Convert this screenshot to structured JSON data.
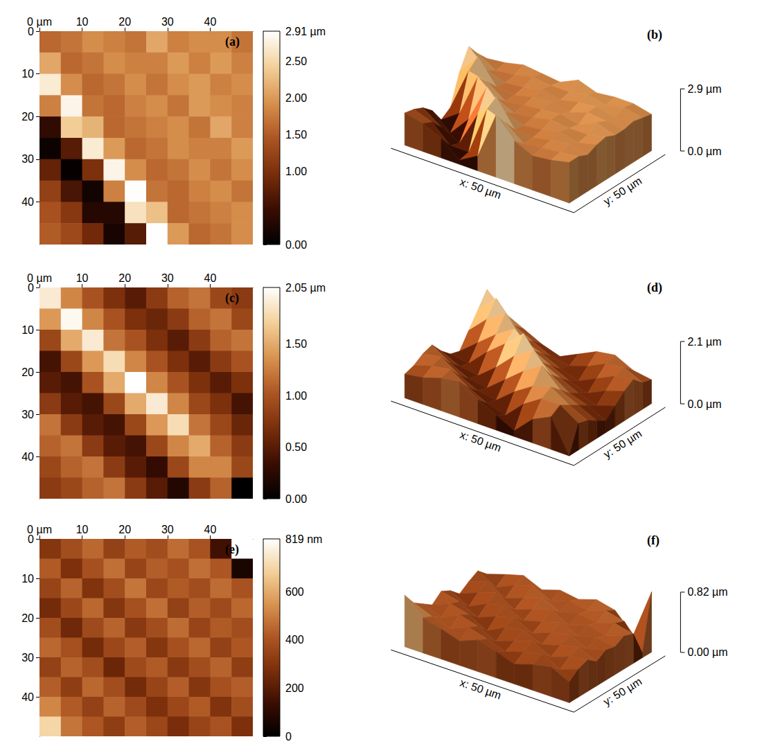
{
  "chart_data": [
    {
      "type": "heatmap",
      "panel_labels": [
        "(a)",
        "(b)"
      ],
      "xlim": [
        0,
        50
      ],
      "ylim": [
        0,
        50
      ],
      "xticks": [
        {
          "value": 0,
          "label": "0 µm"
        },
        10,
        20,
        30,
        40
      ],
      "yticks": [
        0,
        10,
        20,
        30,
        40
      ],
      "colors": [
        "#000000",
        "#3a0d02",
        "#7a2e0a",
        "#ad5523",
        "#d8924f",
        "#f3d09a",
        "#ffffff"
      ],
      "z": [
        [
          1.6,
          1.7,
          1.9,
          1.8,
          1.7,
          2.1,
          1.8,
          1.9,
          1.9,
          1.7
        ],
        [
          2.1,
          1.6,
          1.7,
          1.9,
          1.8,
          1.8,
          2.0,
          1.8,
          2.0,
          1.8
        ],
        [
          2.7,
          1.9,
          1.6,
          1.7,
          1.9,
          1.7,
          1.9,
          2.0,
          1.8,
          1.9
        ],
        [
          1.8,
          2.8,
          1.7,
          1.6,
          1.8,
          1.9,
          1.7,
          2.0,
          1.9,
          1.8
        ],
        [
          0.4,
          2.4,
          2.2,
          1.6,
          1.7,
          1.8,
          1.9,
          1.7,
          2.1,
          1.8
        ],
        [
          0.1,
          0.7,
          2.7,
          2.0,
          1.6,
          1.7,
          1.9,
          1.8,
          1.8,
          2.0
        ],
        [
          0.8,
          0.05,
          1.0,
          2.8,
          1.9,
          1.6,
          1.7,
          1.9,
          1.7,
          1.9
        ],
        [
          1.2,
          0.6,
          0.15,
          1.8,
          2.9,
          1.7,
          1.6,
          1.8,
          1.9,
          1.7
        ],
        [
          1.4,
          1.1,
          0.3,
          0.3,
          2.6,
          2.3,
          1.6,
          1.7,
          1.8,
          1.9
        ],
        [
          1.5,
          1.3,
          0.9,
          0.2,
          0.7,
          2.91,
          2.0,
          1.6,
          1.7,
          1.9
        ]
      ],
      "colorbar": {
        "range": [
          0,
          2.91
        ],
        "ticks": [
          {
            "value": 0,
            "label": "0.00"
          },
          {
            "value": 1,
            "label": "1.00"
          },
          {
            "value": 1.5,
            "label": "1.50"
          },
          {
            "value": 2,
            "label": "2.00"
          },
          {
            "value": 2.5,
            "label": "2.50"
          },
          {
            "value": 2.91,
            "label": "2.91 µm"
          }
        ]
      },
      "surface": {
        "xlabel": "x: 50 µm",
        "ylabel": "y: 50 µm",
        "zlim": [
          0,
          2.91
        ],
        "zticks": [
          {
            "value": 0,
            "label": "0.0 µm"
          },
          {
            "value": 2.9,
            "label": "2.9 µm"
          }
        ]
      }
    },
    {
      "type": "heatmap",
      "panel_labels": [
        "(c)",
        "(d)"
      ],
      "xlim": [
        0,
        50
      ],
      "ylim": [
        0,
        50
      ],
      "xticks": [
        {
          "value": 0,
          "label": "0 µm"
        },
        10,
        20,
        30,
        40
      ],
      "yticks": [
        0,
        10,
        20,
        30,
        40
      ],
      "colors": [
        "#000000",
        "#3a0d02",
        "#7a2e0a",
        "#ad5523",
        "#d8924f",
        "#f3d09a",
        "#ffffff"
      ],
      "z": [
        [
          1.9,
          1.3,
          1.0,
          0.7,
          0.5,
          0.8,
          1.1,
          1.2,
          0.9,
          0.8
        ],
        [
          1.4,
          2.0,
          1.3,
          1.0,
          0.7,
          0.6,
          0.8,
          1.1,
          1.2,
          0.9
        ],
        [
          0.9,
          1.5,
          1.9,
          1.2,
          1.0,
          0.7,
          0.5,
          0.8,
          1.1,
          1.2
        ],
        [
          0.4,
          0.9,
          1.4,
          1.8,
          1.3,
          1.0,
          0.7,
          0.5,
          0.8,
          1.0
        ],
        [
          0.5,
          0.4,
          1.0,
          1.5,
          2.05,
          1.3,
          1.0,
          0.7,
          0.5,
          0.7
        ],
        [
          0.8,
          0.5,
          0.4,
          0.9,
          1.5,
          1.9,
          1.3,
          0.9,
          0.7,
          0.4
        ],
        [
          1.2,
          0.8,
          0.5,
          0.4,
          0.9,
          1.4,
          1.8,
          1.2,
          0.9,
          0.6
        ],
        [
          1.1,
          1.2,
          0.8,
          0.5,
          0.4,
          0.9,
          1.3,
          1.5,
          1.1,
          0.8
        ],
        [
          0.9,
          1.1,
          1.2,
          0.8,
          0.5,
          0.3,
          0.9,
          1.3,
          1.3,
          0.9
        ],
        [
          0.8,
          0.9,
          1.1,
          1.2,
          0.8,
          0.5,
          0.2,
          0.8,
          1.1,
          0.0
        ]
      ],
      "colorbar": {
        "range": [
          0,
          2.05
        ],
        "ticks": [
          {
            "value": 0,
            "label": "0.00"
          },
          {
            "value": 0.5,
            "label": "0.50"
          },
          {
            "value": 1,
            "label": "1.00"
          },
          {
            "value": 1.5,
            "label": "1.50"
          },
          {
            "value": 2.05,
            "label": "2.05 µm"
          }
        ]
      },
      "surface": {
        "xlabel": "x: 50 µm",
        "ylabel": "y: 50 µm",
        "zlim": [
          0,
          2.1
        ],
        "zticks": [
          {
            "value": 0,
            "label": "0.0 µm"
          },
          {
            "value": 2.1,
            "label": "2.1 µm"
          }
        ]
      }
    },
    {
      "type": "heatmap",
      "panel_labels": [
        "(e)",
        "(f)"
      ],
      "xlim": [
        0,
        50
      ],
      "ylim": [
        0,
        50
      ],
      "xticks": [
        {
          "value": 0,
          "label": "0 µm"
        },
        10,
        20,
        30,
        40
      ],
      "yticks": [
        0,
        10,
        20,
        30,
        40
      ],
      "colors": [
        "#000000",
        "#3a0d02",
        "#7a2e0a",
        "#ad5523",
        "#d8924f",
        "#f3d09a",
        "#ffffff"
      ],
      "z": [
        [
          300,
          380,
          450,
          340,
          420,
          380,
          460,
          400,
          150,
          819
        ],
        [
          420,
          280,
          390,
          470,
          350,
          430,
          390,
          470,
          410,
          60
        ],
        [
          350,
          440,
          290,
          380,
          480,
          360,
          420,
          380,
          460,
          400
        ],
        [
          260,
          360,
          450,
          300,
          390,
          470,
          340,
          430,
          370,
          450
        ],
        [
          380,
          250,
          370,
          440,
          310,
          380,
          460,
          350,
          420,
          380
        ],
        [
          450,
          390,
          260,
          360,
          430,
          300,
          390,
          450,
          340,
          410
        ],
        [
          340,
          440,
          380,
          240,
          370,
          420,
          310,
          380,
          440,
          330
        ],
        [
          430,
          330,
          450,
          380,
          260,
          350,
          430,
          300,
          390,
          430
        ],
        [
          520,
          420,
          340,
          440,
          370,
          280,
          360,
          420,
          290,
          380
        ],
        [
          700,
          480,
          410,
          330,
          430,
          360,
          270,
          350,
          400,
          280
        ]
      ],
      "colorbar": {
        "range": [
          0,
          819
        ],
        "ticks": [
          0,
          200,
          400,
          600,
          {
            "value": 819,
            "label": "819 nm"
          }
        ]
      },
      "surface": {
        "xlabel": "x: 50 µm",
        "ylabel": "y: 50 µm",
        "zlim": [
          0,
          820
        ],
        "zticks": [
          {
            "value": 0,
            "label": "0.00 µm"
          },
          {
            "value": 820,
            "label": "0.82 µm"
          }
        ]
      }
    }
  ]
}
